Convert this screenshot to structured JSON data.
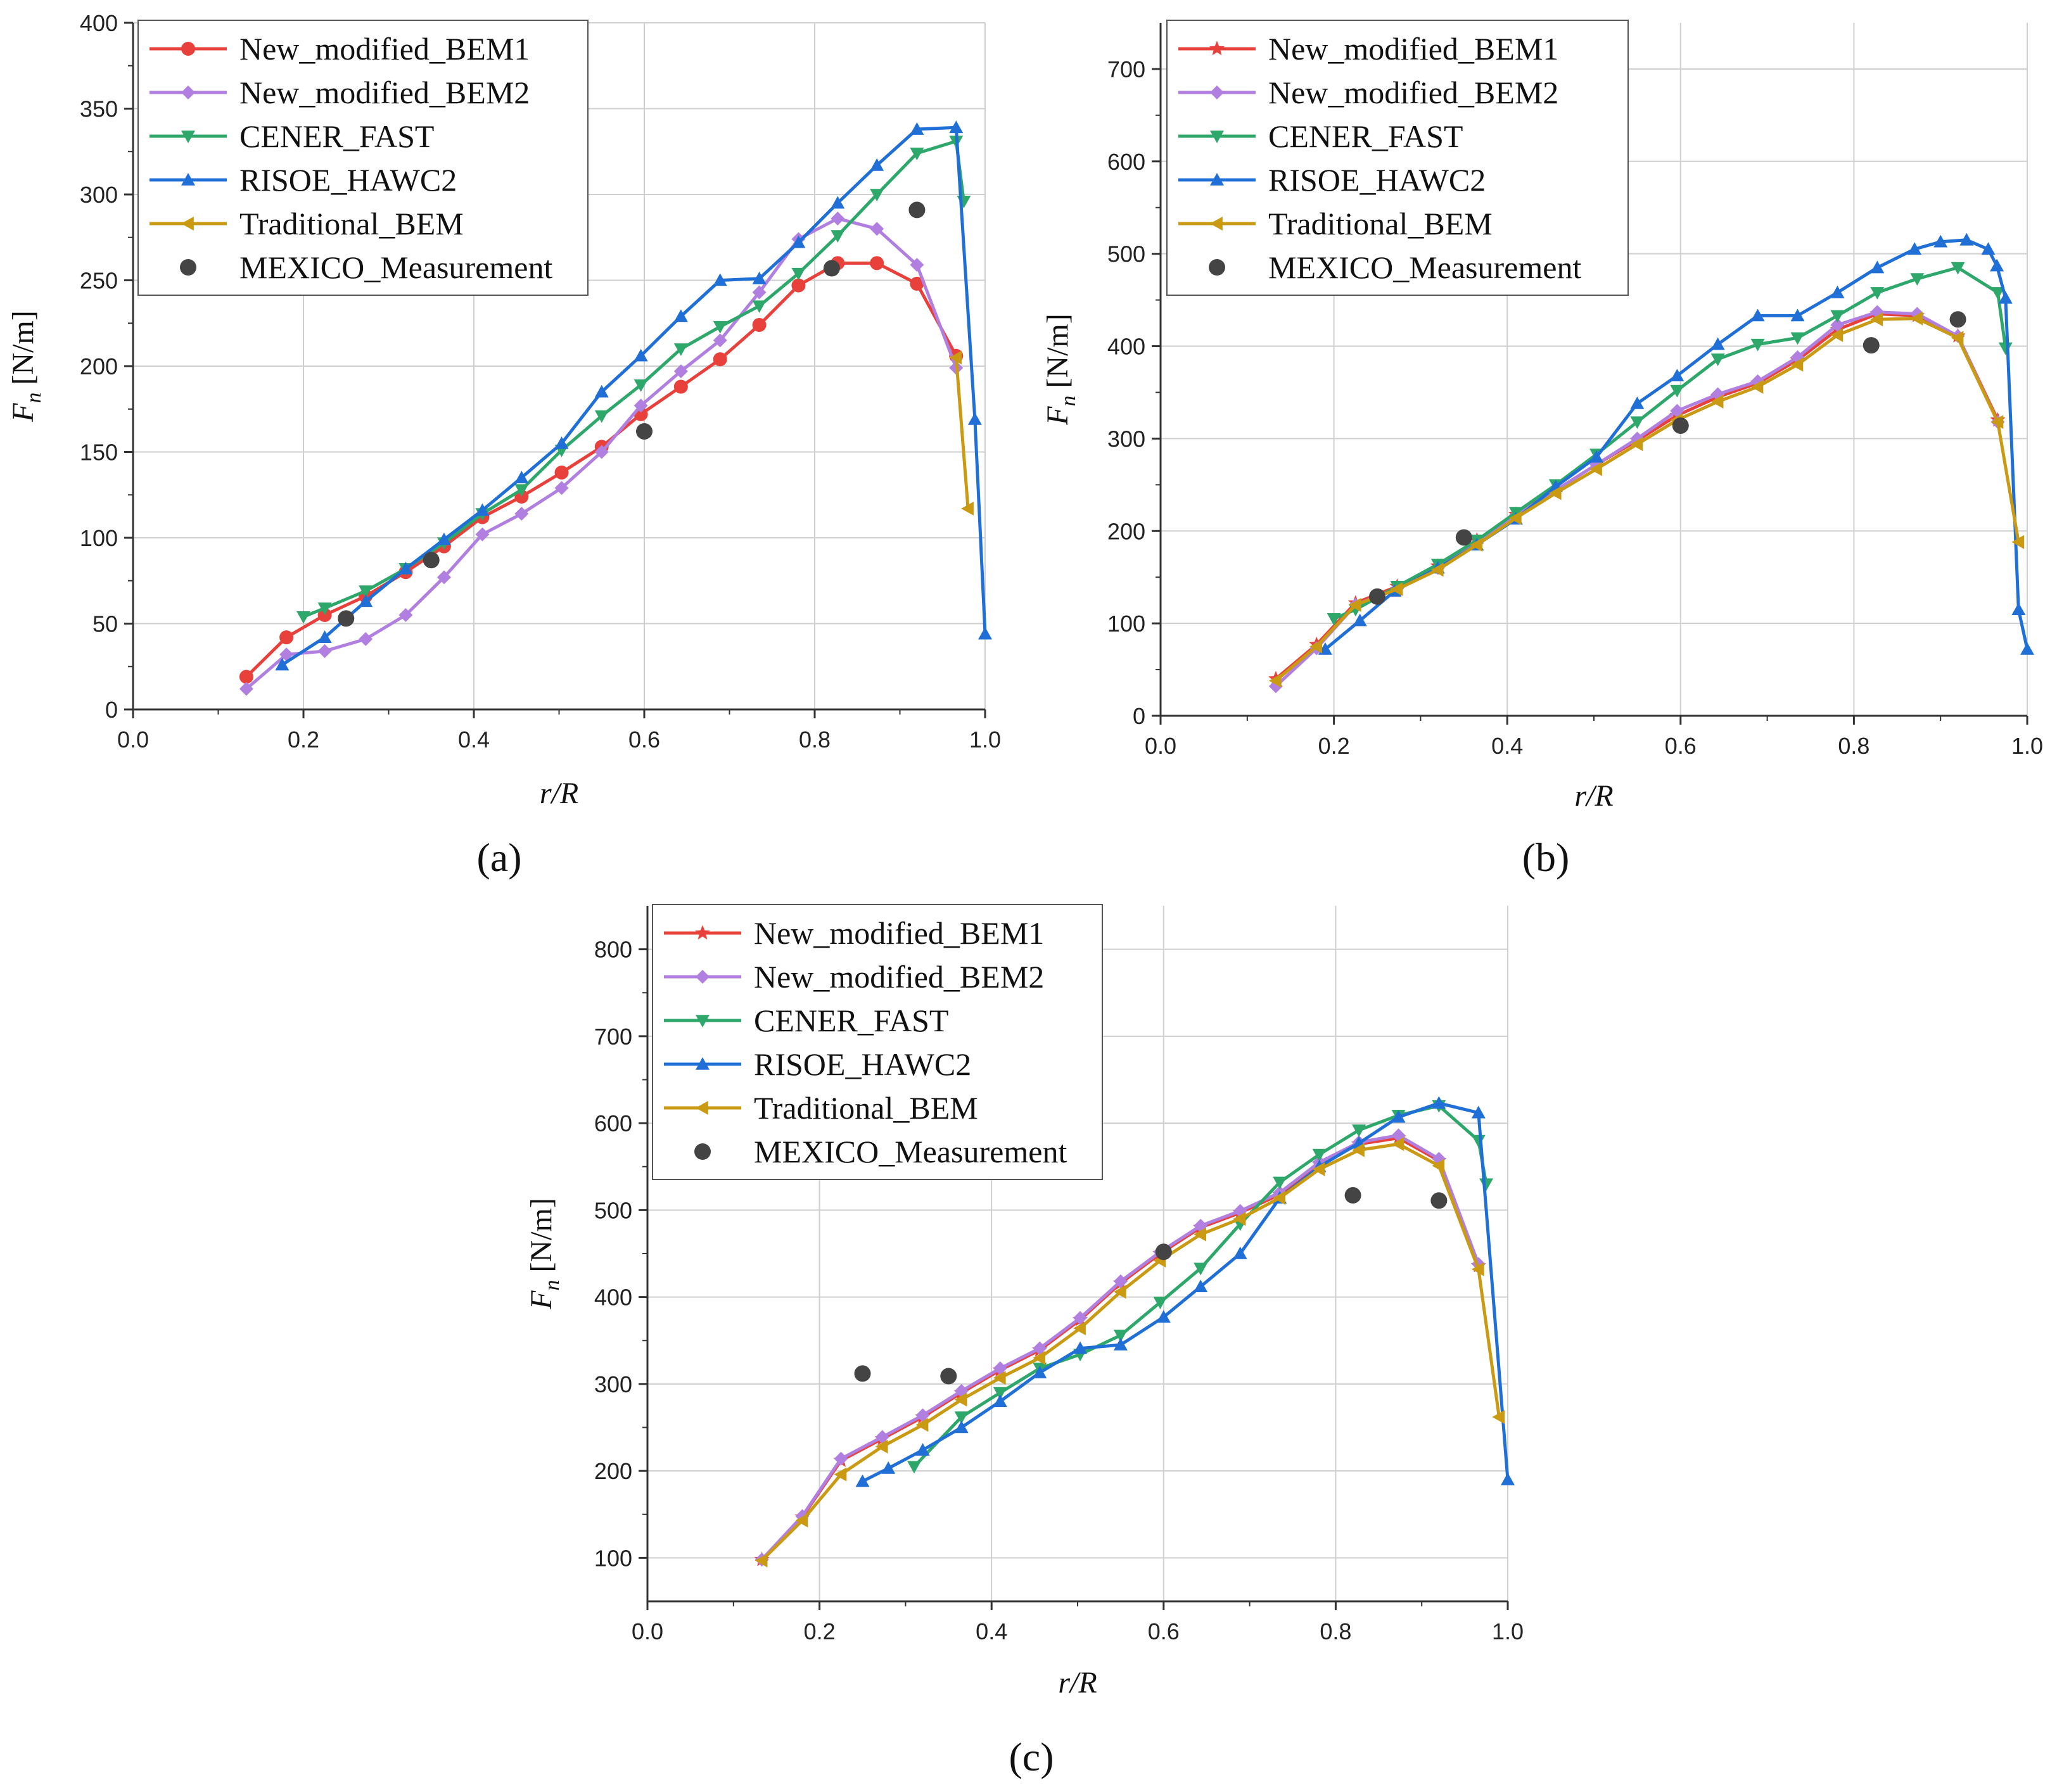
{
  "figure": {
    "series_styles": [
      {
        "name": "New_modified_BEM1",
        "color": "#e8403a"
      },
      {
        "name": "New_modified_BEM2",
        "color": "#b07fe0"
      },
      {
        "name": "CENER_FAST",
        "color": "#2ea86a"
      },
      {
        "name": "RISOE_HAWC2",
        "color": "#1f6fd6"
      },
      {
        "name": "Traditional_BEM",
        "color": "#c99a12"
      },
      {
        "name": "MEXICO_Measurement",
        "color": "#444444"
      }
    ]
  },
  "chart_data": [
    {
      "type": "line",
      "panel_label": "(a)",
      "xlabel": "r/R",
      "ylabel": "F_n [N/m]",
      "ylabel_main": "F",
      "ylabel_sub": "n",
      "ylabel_units": " [N/m]",
      "xlim": [
        0.0,
        1.0
      ],
      "ylim": [
        0,
        400
      ],
      "xticks": [
        0.0,
        0.2,
        0.4,
        0.6,
        0.8,
        1.0
      ],
      "xtick_labels": [
        "0.0",
        "0.2",
        "0.4",
        "0.6",
        "0.8",
        "1.0"
      ],
      "yticks": [
        0,
        50,
        100,
        150,
        200,
        250,
        300,
        350,
        400
      ],
      "ytick_labels": [
        "0",
        "50",
        "100",
        "150",
        "200",
        "250",
        "300",
        "350",
        "400"
      ],
      "grid": true,
      "legend_position": "top-left",
      "series": [
        {
          "name": "New_modified_BEM1",
          "marker": "circle",
          "x": [
            0.133,
            0.18,
            0.225,
            0.273,
            0.32,
            0.365,
            0.41,
            0.456,
            0.503,
            0.55,
            0.596,
            0.643,
            0.689,
            0.735,
            0.781,
            0.827,
            0.873,
            0.92,
            0.966
          ],
          "y": [
            19,
            42,
            55,
            66,
            80,
            95,
            112,
            124,
            138,
            153,
            172,
            188,
            204,
            224,
            247,
            260,
            260,
            248,
            206
          ]
        },
        {
          "name": "New_modified_BEM2",
          "marker": "diamond",
          "x": [
            0.133,
            0.18,
            0.225,
            0.273,
            0.32,
            0.365,
            0.41,
            0.456,
            0.503,
            0.55,
            0.596,
            0.643,
            0.689,
            0.735,
            0.781,
            0.827,
            0.873,
            0.92,
            0.966
          ],
          "y": [
            12,
            32,
            34,
            41,
            55,
            77,
            102,
            114,
            129,
            150,
            177,
            197,
            215,
            243,
            274,
            286,
            280,
            259,
            199
          ]
        },
        {
          "name": "CENER_FAST",
          "marker": "triangle-down",
          "x": [
            0.2,
            0.225,
            0.273,
            0.32,
            0.365,
            0.41,
            0.456,
            0.503,
            0.55,
            0.596,
            0.643,
            0.689,
            0.735,
            0.781,
            0.827,
            0.873,
            0.92,
            0.966,
            0.975
          ],
          "y": [
            54,
            59,
            69,
            82,
            97,
            114,
            128,
            151,
            171,
            189,
            210,
            223,
            235,
            254,
            276,
            300,
            324,
            331,
            296
          ]
        },
        {
          "name": "RISOE_HAWC2",
          "marker": "triangle-up",
          "x": [
            0.175,
            0.225,
            0.273,
            0.32,
            0.365,
            0.41,
            0.456,
            0.503,
            0.55,
            0.596,
            0.643,
            0.689,
            0.735,
            0.781,
            0.827,
            0.873,
            0.92,
            0.966,
            0.988,
            1.0
          ],
          "y": [
            26,
            42,
            63,
            82,
            99,
            116,
            135,
            155,
            185,
            206,
            229,
            250,
            251,
            272,
            295,
            317,
            338,
            339,
            169,
            44
          ]
        },
        {
          "name": "Traditional_BEM",
          "marker": "triangle-left",
          "x": [
            0.966,
            0.98
          ],
          "y": [
            205,
            117
          ]
        },
        {
          "name": "MEXICO_Measurement",
          "marker": "dot",
          "x": [
            0.25,
            0.35,
            0.6,
            0.82,
            0.92
          ],
          "y": [
            53,
            87,
            162,
            257,
            291
          ]
        }
      ]
    },
    {
      "type": "line",
      "panel_label": "(b)",
      "xlabel": "r/R",
      "ylabel": "F_n [N/m]",
      "ylabel_main": "F",
      "ylabel_sub": "n",
      "ylabel_units": " [N/m]",
      "xlim": [
        0.0,
        1.0
      ],
      "ylim": [
        0,
        750
      ],
      "xticks": [
        0.0,
        0.2,
        0.4,
        0.6,
        0.8,
        1.0
      ],
      "xtick_labels": [
        "0.0",
        "0.2",
        "0.4",
        "0.6",
        "0.8",
        "1.0"
      ],
      "yticks": [
        0,
        100,
        200,
        300,
        400,
        500,
        600,
        700
      ],
      "ytick_labels": [
        "0",
        "100",
        "200",
        "300",
        "400",
        "500",
        "600",
        "700"
      ],
      "grid": true,
      "legend_position": "top-left",
      "series": [
        {
          "name": "New_modified_BEM1",
          "marker": "star",
          "x": [
            0.133,
            0.18,
            0.225,
            0.273,
            0.32,
            0.365,
            0.41,
            0.456,
            0.503,
            0.55,
            0.596,
            0.643,
            0.689,
            0.735,
            0.781,
            0.827,
            0.873,
            0.92,
            0.966
          ],
          "y": [
            40,
            77,
            122,
            140,
            162,
            190,
            218,
            244,
            272,
            298,
            325,
            345,
            360,
            385,
            418,
            435,
            433,
            411,
            320
          ]
        },
        {
          "name": "New_modified_BEM2",
          "marker": "diamond",
          "x": [
            0.133,
            0.18,
            0.225,
            0.273,
            0.32,
            0.365,
            0.41,
            0.456,
            0.503,
            0.55,
            0.596,
            0.643,
            0.689,
            0.735,
            0.781,
            0.827,
            0.873,
            0.92,
            0.966
          ],
          "y": [
            32,
            73,
            120,
            138,
            160,
            187,
            217,
            244,
            272,
            300,
            330,
            348,
            362,
            388,
            423,
            437,
            435,
            411,
            318
          ]
        },
        {
          "name": "CENER_FAST",
          "marker": "triangle-down",
          "x": [
            0.2,
            0.225,
            0.273,
            0.32,
            0.365,
            0.41,
            0.456,
            0.503,
            0.55,
            0.596,
            0.643,
            0.689,
            0.735,
            0.781,
            0.827,
            0.873,
            0.92,
            0.966,
            0.975
          ],
          "y": [
            105,
            115,
            140,
            164,
            190,
            220,
            250,
            283,
            318,
            352,
            386,
            402,
            409,
            433,
            458,
            473,
            485,
            458,
            398
          ]
        },
        {
          "name": "RISOE_HAWC2",
          "marker": "triangle-up",
          "x": [
            0.19,
            0.23,
            0.27,
            0.32,
            0.365,
            0.41,
            0.456,
            0.503,
            0.55,
            0.596,
            0.643,
            0.689,
            0.735,
            0.781,
            0.827,
            0.87,
            0.9,
            0.93,
            0.955,
            0.965,
            0.975,
            0.99,
            1.0
          ],
          "y": [
            72,
            103,
            135,
            160,
            185,
            213,
            248,
            280,
            338,
            368,
            402,
            433,
            433,
            458,
            485,
            505,
            513,
            515,
            505,
            487,
            452,
            115,
            72
          ]
        },
        {
          "name": "Traditional_BEM",
          "marker": "triangle-left",
          "x": [
            0.133,
            0.18,
            0.225,
            0.273,
            0.32,
            0.365,
            0.41,
            0.456,
            0.503,
            0.55,
            0.596,
            0.643,
            0.689,
            0.735,
            0.781,
            0.827,
            0.873,
            0.92,
            0.966,
            0.99
          ],
          "y": [
            38,
            75,
            120,
            137,
            158,
            185,
            214,
            241,
            267,
            294,
            320,
            340,
            356,
            380,
            412,
            429,
            430,
            409,
            318,
            188
          ]
        },
        {
          "name": "MEXICO_Measurement",
          "marker": "dot",
          "x": [
            0.25,
            0.35,
            0.6,
            0.82,
            0.92
          ],
          "y": [
            129,
            193,
            314,
            401,
            429
          ]
        }
      ]
    },
    {
      "type": "line",
      "panel_label": "(c)",
      "xlabel": "r/R",
      "ylabel": "F_n [N/m]",
      "ylabel_main": "F",
      "ylabel_sub": "n",
      "ylabel_units": " [N/m]",
      "xlim": [
        0.0,
        1.0
      ],
      "ylim": [
        50,
        850
      ],
      "xticks": [
        0.0,
        0.2,
        0.4,
        0.6,
        0.8,
        1.0
      ],
      "xtick_labels": [
        "0.0",
        "0.2",
        "0.4",
        "0.6",
        "0.8",
        "1.0"
      ],
      "yticks": [
        100,
        200,
        300,
        400,
        500,
        600,
        700,
        800
      ],
      "ytick_labels": [
        "100",
        "200",
        "300",
        "400",
        "500",
        "600",
        "700",
        "800"
      ],
      "grid": true,
      "legend_position": "top-left",
      "series": [
        {
          "name": "New_modified_BEM1",
          "marker": "star",
          "x": [
            0.133,
            0.18,
            0.225,
            0.273,
            0.32,
            0.365,
            0.41,
            0.456,
            0.503,
            0.55,
            0.596,
            0.643,
            0.689,
            0.735,
            0.781,
            0.827,
            0.873,
            0.92,
            0.966
          ],
          "y": [
            98,
            147,
            212,
            237,
            262,
            290,
            316,
            339,
            374,
            416,
            450,
            480,
            497,
            518,
            553,
            576,
            583,
            557,
            436
          ]
        },
        {
          "name": "New_modified_BEM2",
          "marker": "diamond",
          "x": [
            0.133,
            0.18,
            0.225,
            0.273,
            0.32,
            0.365,
            0.41,
            0.456,
            0.503,
            0.55,
            0.596,
            0.643,
            0.689,
            0.735,
            0.781,
            0.827,
            0.873,
            0.92,
            0.966
          ],
          "y": [
            98,
            148,
            214,
            239,
            264,
            292,
            318,
            341,
            376,
            418,
            452,
            482,
            499,
            520,
            555,
            578,
            586,
            559,
            438
          ]
        },
        {
          "name": "CENER_FAST",
          "marker": "triangle-down",
          "x": [
            0.31,
            0.365,
            0.41,
            0.456,
            0.503,
            0.55,
            0.596,
            0.643,
            0.689,
            0.735,
            0.781,
            0.827,
            0.873,
            0.92,
            0.966,
            0.975
          ],
          "y": [
            205,
            262,
            290,
            318,
            334,
            356,
            394,
            433,
            484,
            532,
            564,
            592,
            609,
            620,
            580,
            530
          ]
        },
        {
          "name": "RISOE_HAWC2",
          "marker": "triangle-up",
          "x": [
            0.25,
            0.28,
            0.32,
            0.365,
            0.41,
            0.456,
            0.503,
            0.55,
            0.6,
            0.643,
            0.689,
            0.735,
            0.781,
            0.827,
            0.873,
            0.92,
            0.966,
            1.0
          ],
          "y": [
            188,
            203,
            224,
            250,
            280,
            313,
            341,
            345,
            377,
            412,
            450,
            514,
            550,
            577,
            607,
            623,
            612,
            190
          ]
        },
        {
          "name": "Traditional_BEM",
          "marker": "triangle-left",
          "x": [
            0.133,
            0.18,
            0.225,
            0.273,
            0.32,
            0.365,
            0.41,
            0.456,
            0.503,
            0.55,
            0.596,
            0.643,
            0.689,
            0.735,
            0.781,
            0.827,
            0.873,
            0.92,
            0.966,
            0.99
          ],
          "y": [
            97,
            143,
            196,
            228,
            253,
            282,
            307,
            330,
            364,
            406,
            442,
            472,
            490,
            514,
            547,
            569,
            576,
            551,
            432,
            262
          ]
        },
        {
          "name": "MEXICO_Measurement",
          "marker": "dot",
          "x": [
            0.25,
            0.35,
            0.6,
            0.82,
            0.92
          ],
          "y": [
            312,
            309,
            452,
            517,
            511
          ]
        }
      ]
    }
  ]
}
